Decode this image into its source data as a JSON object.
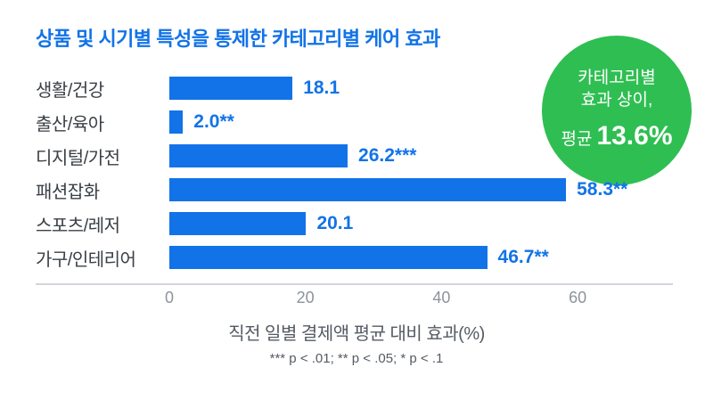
{
  "title": "상품 및 시기별 특성을 통제한 카테고리별 케어 효과",
  "accent_blue": "#1273e8",
  "badge": {
    "line1": "카테고리별",
    "line2": "효과 상이,",
    "prefix": "평균",
    "value": "13.6%",
    "color": "#2fbe52"
  },
  "chart_data": {
    "type": "bar",
    "orientation": "horizontal",
    "title": "상품 및 시기별 특성을 통제한 카테고리별 케어 효과",
    "categories": [
      "생활/건강",
      "출산/육아",
      "디지털/가전",
      "패션잡화",
      "스포츠/레저",
      "가구/인테리어"
    ],
    "values": [
      18.1,
      2.0,
      26.2,
      58.3,
      20.1,
      46.7
    ],
    "value_labels": [
      "18.1",
      "2.0**",
      "26.2***",
      "58.3**",
      "20.1",
      "46.7**"
    ],
    "xlabel": "직전 일별 결제액 평균 대비 효과(%)",
    "footnote": "*** p < .01; ** p < .05; * p < .1",
    "xticks": [
      0,
      20,
      40,
      60
    ],
    "xlim": [
      0,
      74
    ],
    "bar_color": "#1273e8",
    "grid": false,
    "legend": false,
    "annotation": "카테고리별 효과 상이, 평균 13.6%"
  }
}
